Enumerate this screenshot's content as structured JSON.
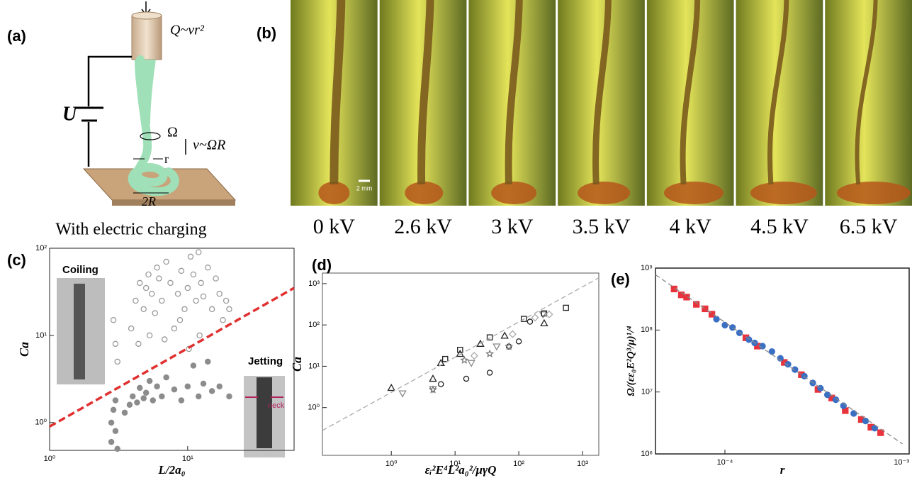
{
  "figure": {
    "panel_a": {
      "label": "(a)",
      "flow": "Q~vr²",
      "voltage": "U",
      "rotation": "Ω",
      "radius": "r",
      "speed": "v~ΩR",
      "coil": "2R",
      "caption": "With electric charging"
    },
    "panel_b": {
      "label": "(b)",
      "scale_bar": "2 mm",
      "frames": [
        "0 kV",
        "2.6 kV",
        "3 kV",
        "3.5 kV",
        "4 kV",
        "4.5 kV",
        "6.5 kV"
      ]
    }
  },
  "chart_data": [
    {
      "type": "scatter",
      "label": "(c)",
      "x_label": "L/2a₀",
      "y_label": "Ca",
      "annotations": [
        "Coiling",
        "Jetting",
        "neck"
      ],
      "log_x": true,
      "log_y": true,
      "xlim": [
        1,
        59
      ],
      "ylim": [
        0.48,
        100
      ],
      "xticks": [
        {
          "value": 1,
          "label": "10⁰"
        },
        {
          "value": 10,
          "label": "10¹"
        }
      ],
      "yticks": [
        {
          "value": 1,
          "label": "10⁰"
        },
        {
          "value": 10,
          "label": "10¹"
        },
        {
          "value": 100,
          "label": "10²"
        }
      ],
      "series": [
        {
          "marker": "circle",
          "filled": false,
          "color": "#9a9a9a",
          "x": [
            2.9,
            3,
            3.1,
            3.9,
            4.2,
            4.5,
            4.8,
            5,
            5.2,
            5.5,
            5.8,
            6,
            6.2,
            6.5,
            7,
            7.5,
            8,
            8.5,
            9,
            9.5,
            10,
            10.5,
            11,
            11.5,
            12,
            12.5,
            13,
            14,
            15,
            16,
            17,
            18,
            19,
            20,
            4.4,
            5.3,
            6.8,
            8.8,
            10.2,
            12.2
          ],
          "values": [
            15,
            8,
            5,
            12,
            25,
            40,
            20,
            35,
            50,
            30,
            18,
            60,
            45,
            25,
            70,
            40,
            12,
            30,
            55,
            20,
            35,
            80,
            50,
            25,
            90,
            40,
            28,
            60,
            20,
            45,
            30,
            15,
            25,
            20,
            8,
            10,
            9,
            15,
            7,
            10
          ]
        },
        {
          "marker": "circle",
          "filled": true,
          "color": "#8c8c8c",
          "x": [
            2.8,
            2.8,
            2.9,
            3,
            3,
            3.1,
            3.5,
            3.8,
            4,
            4.3,
            4.5,
            4.8,
            5,
            5.3,
            5.6,
            6,
            6.5,
            7,
            8,
            9,
            10,
            11,
            12,
            13,
            14,
            15,
            17,
            20
          ],
          "values": [
            0.6,
            1.0,
            1.4,
            0.8,
            1.8,
            0.5,
            1.3,
            1.6,
            2.0,
            1.7,
            2.5,
            1.9,
            2.2,
            3.0,
            1.8,
            2.6,
            2.0,
            3.3,
            2.4,
            1.8,
            2.6,
            4.5,
            2.0,
            2.8,
            5.0,
            2.3,
            2.6,
            2.0
          ]
        },
        {
          "marker": "line",
          "style": "dashed",
          "color": "#e03030",
          "x": [
            1,
            59
          ],
          "values": [
            0.9,
            35
          ]
        }
      ]
    },
    {
      "type": "scatter",
      "label": "(d)",
      "x_label": "εᵢ²E⁴L²a₀²/μγQ",
      "y_label": "Ca",
      "log_x": true,
      "log_y": true,
      "xlim": [
        0.083,
        1800
      ],
      "ylim": [
        0.07,
        1800
      ],
      "xticks": [
        {
          "value": 1,
          "label": "10⁰"
        },
        {
          "value": 10,
          "label": "10¹"
        },
        {
          "value": 100,
          "label": "10²"
        },
        {
          "value": 1000,
          "label": "10³"
        }
      ],
      "yticks": [
        {
          "value": 1,
          "label": "10⁰"
        },
        {
          "value": 10,
          "label": "10¹"
        },
        {
          "value": 100,
          "label": "10²"
        },
        {
          "value": 1000,
          "label": "10³"
        }
      ],
      "series": [
        {
          "marker": "triangle",
          "filled": false,
          "color": "#222222",
          "x": [
            1,
            4.5,
            6,
            12,
            25,
            60,
            250
          ],
          "values": [
            3,
            5,
            12,
            20,
            35,
            55,
            110
          ]
        },
        {
          "marker": "triangle-down",
          "filled": false,
          "color": "#888888",
          "x": [
            1.5,
            4.5,
            18,
            45,
            240
          ],
          "values": [
            2.2,
            2.8,
            12,
            30,
            180
          ]
        },
        {
          "marker": "circle",
          "filled": false,
          "color": "#222222",
          "x": [
            6,
            15,
            35,
            70,
            100,
            150
          ],
          "values": [
            3.7,
            5,
            7,
            30,
            40,
            120
          ]
        },
        {
          "marker": "square",
          "filled": false,
          "color": "#222222",
          "x": [
            7,
            12,
            35,
            120,
            250,
            550
          ],
          "values": [
            15,
            25,
            50,
            140,
            190,
            260
          ]
        },
        {
          "marker": "star",
          "filled": false,
          "color": "#777777",
          "x": [
            4.5,
            14,
            35,
            70
          ],
          "values": [
            2.7,
            14,
            20,
            30
          ]
        },
        {
          "marker": "diamond",
          "filled": false,
          "color": "#aaaaaa",
          "x": [
            20,
            80,
            180,
            300
          ],
          "values": [
            18,
            60,
            150,
            180
          ]
        },
        {
          "marker": "line",
          "style": "dashed",
          "color": "#aaaaaa",
          "x": [
            0.083,
            1800
          ],
          "values": [
            0.28,
            1380
          ]
        }
      ]
    },
    {
      "type": "scatter",
      "label": "(e)",
      "x_label": "r",
      "y_label": "Ω/(εε₀E²Q³/μ)¹/⁴",
      "log_x": true,
      "log_y": true,
      "xlim": [
        4.2e-05,
        0.001
      ],
      "ylim": [
        1000000.0,
        1000000000.0
      ],
      "xticks": [
        {
          "value": 0.0001,
          "label": "10⁻⁴"
        },
        {
          "value": 0.001,
          "label": "10⁻³"
        }
      ],
      "yticks": [
        {
          "value": 1000000.0,
          "label": "10⁶"
        },
        {
          "value": 10000000.0,
          "label": "10⁷"
        },
        {
          "value": 100000000.0,
          "label": "10⁸"
        },
        {
          "value": 1000000000.0,
          "label": "10⁹"
        }
      ],
      "series": [
        {
          "marker": "square",
          "filled": true,
          "color": "#e8323c",
          "x": [
            5.3e-05,
            5.8e-05,
            6.2e-05,
            7e-05,
            7.8e-05,
            8.5e-05,
            0.00013,
            0.00015,
            0.00021,
            0.00026,
            0.00032,
            0.00038,
            0.00045,
            0.00055,
            0.00062,
            0.0007
          ],
          "values": [
            460000000.0,
            370000000.0,
            340000000.0,
            260000000.0,
            220000000.0,
            180000000.0,
            75000000.0,
            55000000.0,
            30000000.0,
            19000000.0,
            11000000.0,
            8000000.0,
            5000000.0,
            3600000.0,
            2700000.0,
            2200000.0
          ]
        },
        {
          "marker": "circle",
          "filled": true,
          "color": "#3a6fc4",
          "x": [
            9e-05,
            0.0001,
            0.00011,
            0.00012,
            0.000135,
            0.000145,
            0.00016,
            0.00018,
            0.0002,
            0.00022,
            0.00024,
            0.00027,
            0.0003,
            0.00033,
            0.00036,
            0.0004,
            0.00044,
            0.0005,
            0.00058,
            0.00065
          ],
          "values": [
            150000000.0,
            120000000.0,
            110000000.0,
            90000000.0,
            70000000.0,
            62000000.0,
            55000000.0,
            45000000.0,
            35000000.0,
            28000000.0,
            23000000.0,
            18000000.0,
            14000000.0,
            11500000.0,
            9000000.0,
            7500000.0,
            6000000.0,
            4500000.0,
            3400000.0,
            2600000.0
          ]
        },
        {
          "marker": "line",
          "style": "dashed",
          "color": "#888888",
          "x": [
            4.2e-05,
            0.00092
          ],
          "values": [
            780000000.0,
            1450000.0
          ]
        }
      ]
    }
  ]
}
